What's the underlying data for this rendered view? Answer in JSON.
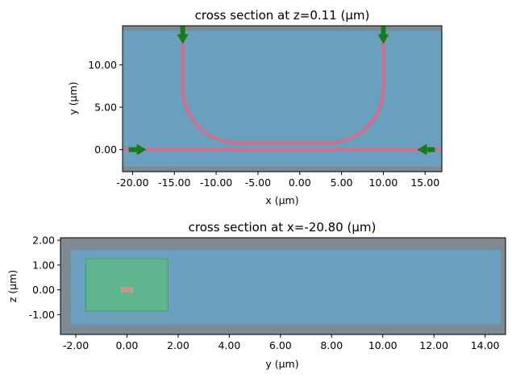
{
  "chart_data": [
    {
      "type": "cross-section",
      "title": "cross section at z=0.11 (µm)",
      "xlabel": "x (µm)",
      "ylabel": "y (µm)",
      "xlim": [
        -21.2,
        17.0
      ],
      "ylim": [
        -2.6,
        14.6
      ],
      "xticks": [
        -20,
        -15,
        -10,
        -5,
        0,
        5,
        10,
        15
      ],
      "xtick_labels": [
        "-20.00",
        "-15.00",
        "-10.00",
        "-5.00",
        "0.00",
        "5.00",
        "10.00",
        "15.00"
      ],
      "yticks": [
        0,
        5,
        10
      ],
      "ytick_labels": [
        "0.00",
        "5.00",
        "10.00"
      ],
      "background_region": {
        "x": [
          -21.2,
          17.0
        ],
        "y": [
          -2.0,
          14.0
        ],
        "color": "#6a9fbd"
      },
      "waveguides": [
        {
          "name": "bus",
          "points": [
            [
              -21.2,
              0
            ],
            [
              17.0,
              0
            ]
          ]
        },
        {
          "name": "bend",
          "path": "U",
          "x_left": -14.0,
          "x_right": 10.0,
          "y_bottom": 0.8,
          "y_top": 14.6,
          "radius": 6.5
        }
      ],
      "arrows": [
        {
          "x": -19.5,
          "y": 0,
          "direction": "right"
        },
        {
          "x": 15.2,
          "y": 0,
          "direction": "left"
        },
        {
          "x": -14.0,
          "y": 13.6,
          "direction": "down"
        },
        {
          "x": 10.0,
          "y": 13.6,
          "direction": "down"
        }
      ],
      "colors": {
        "waveguide": "#d06e8d",
        "arrow": "#1a7a1a",
        "frame": "#7d8a94",
        "domain": "#6a9fbd"
      }
    },
    {
      "type": "cross-section",
      "title": "cross section at x=-20.80 (µm)",
      "xlabel": "y (µm)",
      "ylabel": "z (µm)",
      "xlim": [
        -2.6,
        14.8
      ],
      "ylim": [
        -1.8,
        2.1
      ],
      "xticks": [
        -2,
        0,
        2,
        4,
        6,
        8,
        10,
        12,
        14
      ],
      "xtick_labels": [
        "-2.00",
        "0.00",
        "2.00",
        "4.00",
        "6.00",
        "8.00",
        "10.00",
        "12.00",
        "14.00"
      ],
      "yticks": [
        -1,
        0,
        1,
        2
      ],
      "ytick_labels": [
        "-1.00",
        "0.00",
        "1.00",
        "2.00"
      ],
      "background_region": {
        "x": [
          -2.2,
          14.6
        ],
        "y": [
          -1.4,
          1.6
        ],
        "color": "#6a9fbd"
      },
      "source_box": {
        "x": [
          -1.6,
          1.6
        ],
        "y": [
          -0.85,
          1.25
        ],
        "color": "#5cb888"
      },
      "core": {
        "x": [
          -0.25,
          0.25
        ],
        "y": [
          -0.11,
          0.11
        ],
        "color": "#c49a8a"
      },
      "colors": {
        "frame": "#7d8a94",
        "domain": "#6a9fbd"
      }
    }
  ]
}
